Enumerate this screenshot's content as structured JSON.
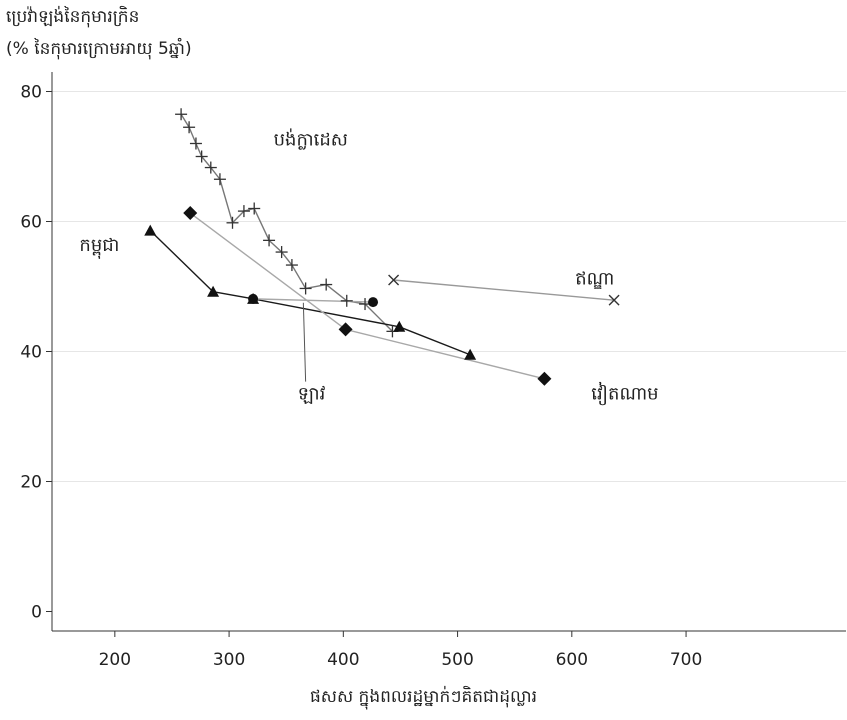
{
  "chart_data": {
    "type": "line",
    "ylabel_line1": "ប្រេវ៉ាឡង់នៃកុមារក្រិន",
    "ylabel_line2": "(% នៃកុមារក្រោមអាយុ 5ឆ្នាំ)",
    "xlabel": "ផសស ក្នុងពលរដ្ឋម្នាក់ៗគិតជាដុល្លារ",
    "xlim": [
      145,
      840
    ],
    "ylim": [
      -3,
      83
    ],
    "x_ticks": [
      "200",
      "300",
      "400",
      "500",
      "600",
      "700"
    ],
    "y_ticks": [
      "0",
      "20",
      "40",
      "60",
      "80"
    ],
    "grid": "horizontal",
    "colors": {
      "dark": "#1a1a1a",
      "light": "#a8a8a8",
      "grid": "#e6e6e6"
    },
    "series": [
      {
        "name": "បង់ក្លាដេស",
        "marker": "plus",
        "color": "#777777",
        "points": [
          [
            258,
            76.5
          ],
          [
            265,
            74.5
          ],
          [
            271,
            72
          ],
          [
            276,
            70
          ],
          [
            284,
            68.3
          ],
          [
            292,
            66.5
          ],
          [
            303,
            59.8
          ],
          [
            313,
            61.6
          ],
          [
            322,
            62
          ],
          [
            335,
            57.1
          ],
          [
            346,
            55.3
          ],
          [
            355,
            53.3
          ],
          [
            367,
            49.7
          ],
          [
            385,
            50.3
          ],
          [
            403,
            47.8
          ],
          [
            419,
            47.3
          ],
          [
            443,
            43.1
          ]
        ]
      },
      {
        "name": "កម្ពុជា",
        "marker": "triangle",
        "color": "#1a1a1a",
        "points": [
          [
            231,
            58.6
          ],
          [
            286,
            49.2
          ],
          [
            321,
            48.1
          ],
          [
            449,
            43.8
          ],
          [
            511,
            39.5
          ]
        ]
      },
      {
        "name": "វៀតណាម",
        "marker": "diamond",
        "color": "#a8a8a8",
        "points": [
          [
            266,
            61.3
          ],
          [
            402,
            43.4
          ],
          [
            576,
            35.8
          ]
        ]
      },
      {
        "name": "ឡាវ",
        "marker": "circle",
        "color": "#a8a8a8",
        "points": [
          [
            321,
            48.1
          ],
          [
            426,
            47.6
          ]
        ]
      },
      {
        "name": "ឥណ្ឌា",
        "marker": "x",
        "color": "#999999",
        "points": [
          [
            444,
            51
          ],
          [
            637,
            47.9
          ]
        ]
      }
    ],
    "annotations": [
      {
        "text": "បង់ក្លាដេស",
        "x": 339,
        "y": 71.7,
        "pointer": null
      },
      {
        "text": "កម្ពុជា",
        "x": 169,
        "y": 55.5,
        "pointer": null
      },
      {
        "text": "ឥណ្ឌា",
        "x": 603,
        "y": 50.3,
        "pointer": null
      },
      {
        "text": "ឡាវ",
        "x": 360,
        "y": 32.6,
        "pointer": [
          365,
          47.5
        ]
      },
      {
        "text": "វៀតណាម",
        "x": 617,
        "y": 32.6,
        "pointer": null
      }
    ]
  }
}
